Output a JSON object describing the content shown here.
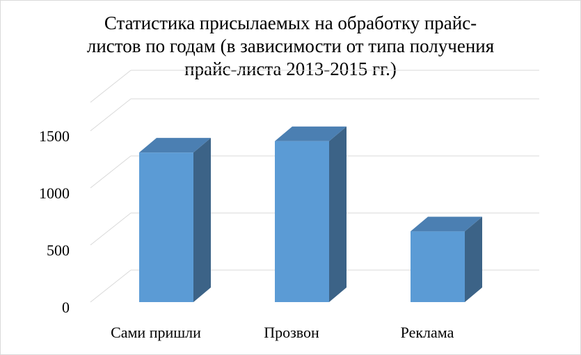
{
  "title_lines": [
    "Статистика присылаемых на обработку прайс-",
    "листов по годам (в зависимости от типа получения",
    "прайс-листа 2013-2015 гг.)"
  ],
  "colors": {
    "bar_front": "#5b9bd5",
    "bar_side": "#3c6387",
    "bar_top": "#4b7fb2",
    "grid": "#d9d9d9"
  },
  "chart_data": {
    "type": "bar",
    "title": "Статистика присылаемых на обработку прайс-листов по годам (в зависимости от типа получения прайс-листа 2013-2015 гг.)",
    "categories": [
      "Сами пришли",
      "Прозвон",
      "Реклама"
    ],
    "values": [
      1310,
      1410,
      620
    ],
    "yticks": [
      "0",
      "500",
      "1000",
      "1500"
    ],
    "ylim": [
      0,
      1750
    ],
    "grid": true,
    "three_d": true
  }
}
